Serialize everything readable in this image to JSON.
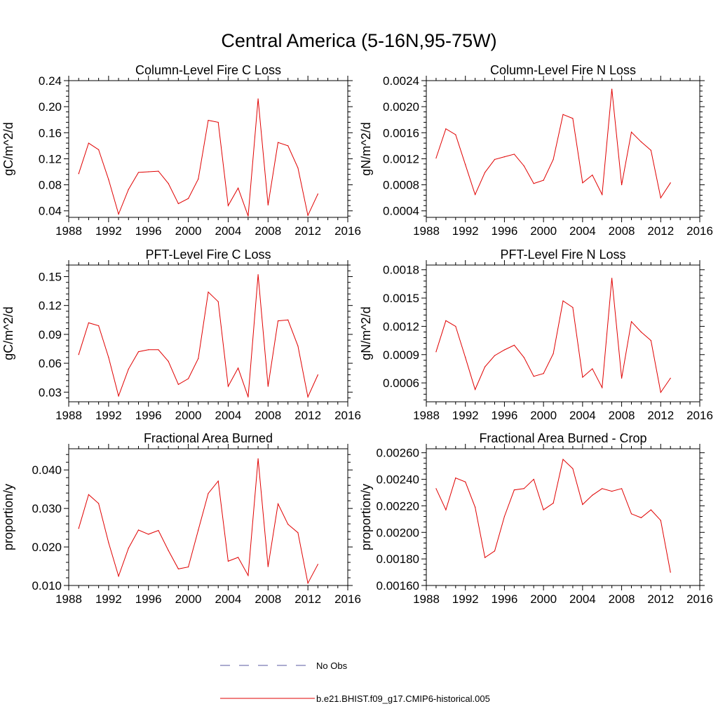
{
  "figure": {
    "title": "Central America (5-16N,95-75W)",
    "legend": [
      {
        "label": "No Obs",
        "color": "#5a5aa0",
        "style": "dashed"
      },
      {
        "label": "b.e21.BHIST.f09_g17.CMIP6-historical.005",
        "color": "#e00000",
        "style": "solid"
      }
    ]
  },
  "chart_data": [
    {
      "type": "line",
      "title": "Column-Level Fire C Loss",
      "xlabel": "",
      "ylabel": "gC/m^2/d",
      "xlim": [
        1988,
        2016
      ],
      "ylim": [
        0.03,
        0.24
      ],
      "xticks": [
        1988,
        1992,
        1996,
        2000,
        2004,
        2008,
        2012,
        2016
      ],
      "xtick_labels": [
        "1988",
        "1992",
        "1996",
        "2000",
        "2004",
        "2008",
        "2012",
        "2016"
      ],
      "yticks": [
        0.04,
        0.08,
        0.12,
        0.16,
        0.2,
        0.24
      ],
      "ytick_labels": [
        "0.04",
        "0.08",
        "0.12",
        "0.16",
        "0.20",
        "0.24"
      ],
      "x": [
        1989,
        1990,
        1991,
        1992,
        1993,
        1994,
        1995,
        1996,
        1997,
        1998,
        1999,
        2000,
        2001,
        2002,
        2003,
        2004,
        2005,
        2006,
        2007,
        2008,
        2009,
        2010,
        2011,
        2012,
        2013
      ],
      "series": [
        {
          "name": "b.e21.BHIST.f09_g17.CMIP6-historical.005",
          "color": "#e00000",
          "values": [
            0.097,
            0.144,
            0.134,
            0.088,
            0.035,
            0.073,
            0.099,
            0.1,
            0.101,
            0.082,
            0.051,
            0.059,
            0.089,
            0.179,
            0.176,
            0.048,
            0.075,
            0.032,
            0.212,
            0.049,
            0.145,
            0.14,
            0.106,
            0.033,
            0.066
          ]
        }
      ]
    },
    {
      "type": "line",
      "title": "Column-Level Fire N Loss",
      "xlabel": "",
      "ylabel": "gN/m^2/d",
      "xlim": [
        1988,
        2016
      ],
      "ylim": [
        0.0003,
        0.0024
      ],
      "xticks": [
        1988,
        1992,
        1996,
        2000,
        2004,
        2008,
        2012,
        2016
      ],
      "xtick_labels": [
        "1988",
        "1992",
        "1996",
        "2000",
        "2004",
        "2008",
        "2012",
        "2016"
      ],
      "yticks": [
        0.0004,
        0.0008,
        0.0012,
        0.0016,
        0.002,
        0.0024
      ],
      "ytick_labels": [
        "0.0004",
        "0.0008",
        "0.0012",
        "0.0016",
        "0.0020",
        "0.0024"
      ],
      "x": [
        1989,
        1990,
        1991,
        1992,
        1993,
        1994,
        1995,
        1996,
        1997,
        1998,
        1999,
        2000,
        2001,
        2002,
        2003,
        2004,
        2005,
        2006,
        2007,
        2008,
        2009,
        2010,
        2011,
        2012,
        2013
      ],
      "series": [
        {
          "name": "b.e21.BHIST.f09_g17.CMIP6-historical.005",
          "color": "#e00000",
          "values": [
            0.00121,
            0.00166,
            0.00157,
            0.00111,
            0.00065,
            0.00099,
            0.00119,
            0.00123,
            0.00127,
            0.00109,
            0.00082,
            0.00087,
            0.00119,
            0.00188,
            0.00182,
            0.00083,
            0.00095,
            0.00065,
            0.00227,
            0.0008,
            0.00161,
            0.00146,
            0.00133,
            0.0006,
            0.00083
          ]
        }
      ]
    },
    {
      "type": "line",
      "title": "PFT-Level Fire C Loss",
      "xlabel": "",
      "ylabel": "gC/m^2/d",
      "xlim": [
        1988,
        2016
      ],
      "ylim": [
        0.02,
        0.162
      ],
      "xticks": [
        1988,
        1992,
        1996,
        2000,
        2004,
        2008,
        2012,
        2016
      ],
      "xtick_labels": [
        "1988",
        "1992",
        "1996",
        "2000",
        "2004",
        "2008",
        "2012",
        "2016"
      ],
      "yticks": [
        0.03,
        0.06,
        0.09,
        0.12,
        0.15
      ],
      "ytick_labels": [
        "0.03",
        "0.06",
        "0.09",
        "0.12",
        "0.15"
      ],
      "x": [
        1989,
        1990,
        1991,
        1992,
        1993,
        1994,
        1995,
        1996,
        1997,
        1998,
        1999,
        2000,
        2001,
        2002,
        2003,
        2004,
        2005,
        2006,
        2007,
        2008,
        2009,
        2010,
        2011,
        2012,
        2013
      ],
      "series": [
        {
          "name": "b.e21.BHIST.f09_g17.CMIP6-historical.005",
          "color": "#e00000",
          "values": [
            0.069,
            0.102,
            0.099,
            0.066,
            0.026,
            0.054,
            0.072,
            0.074,
            0.074,
            0.062,
            0.038,
            0.044,
            0.065,
            0.134,
            0.124,
            0.036,
            0.055,
            0.025,
            0.152,
            0.036,
            0.104,
            0.105,
            0.078,
            0.025,
            0.048
          ]
        }
      ]
    },
    {
      "type": "line",
      "title": "PFT-Level Fire N Loss",
      "xlabel": "",
      "ylabel": "gN/m^2/d",
      "xlim": [
        1988,
        2016
      ],
      "ylim": [
        0.0004,
        0.00185
      ],
      "xticks": [
        1988,
        1992,
        1996,
        2000,
        2004,
        2008,
        2012,
        2016
      ],
      "xtick_labels": [
        "1988",
        "1992",
        "1996",
        "2000",
        "2004",
        "2008",
        "2012",
        "2016"
      ],
      "yticks": [
        0.0006,
        0.0009,
        0.0012,
        0.0015,
        0.0018
      ],
      "ytick_labels": [
        "0.0006",
        "0.0009",
        "0.0012",
        "0.0015",
        "0.0018"
      ],
      "x": [
        1989,
        1990,
        1991,
        1992,
        1993,
        1994,
        1995,
        1996,
        1997,
        1998,
        1999,
        2000,
        2001,
        2002,
        2003,
        2004,
        2005,
        2006,
        2007,
        2008,
        2009,
        2010,
        2011,
        2012,
        2013
      ],
      "series": [
        {
          "name": "b.e21.BHIST.f09_g17.CMIP6-historical.005",
          "color": "#e00000",
          "values": [
            0.00093,
            0.00126,
            0.0012,
            0.00087,
            0.00053,
            0.00077,
            0.00089,
            0.00095,
            0.001,
            0.00087,
            0.00067,
            0.0007,
            0.00091,
            0.00147,
            0.0014,
            0.00066,
            0.00075,
            0.00055,
            0.00171,
            0.00065,
            0.00125,
            0.00114,
            0.00105,
            0.0005,
            0.00065
          ]
        }
      ]
    },
    {
      "type": "line",
      "title": "Fractional Area Burned",
      "xlabel": "",
      "ylabel": "proportion/y",
      "xlim": [
        1988,
        2016
      ],
      "ylim": [
        0.01,
        0.0455
      ],
      "xticks": [
        1988,
        1992,
        1996,
        2000,
        2004,
        2008,
        2012,
        2016
      ],
      "xtick_labels": [
        "1988",
        "1992",
        "1996",
        "2000",
        "2004",
        "2008",
        "2012",
        "2016"
      ],
      "yticks": [
        0.01,
        0.02,
        0.03,
        0.04
      ],
      "ytick_labels": [
        "0.010",
        "0.020",
        "0.030",
        "0.040"
      ],
      "x": [
        1989,
        1990,
        1991,
        1992,
        1993,
        1994,
        1995,
        1996,
        1997,
        1998,
        1999,
        2000,
        2001,
        2002,
        2003,
        2004,
        2005,
        2006,
        2007,
        2008,
        2009,
        2010,
        2011,
        2012,
        2013
      ],
      "series": [
        {
          "name": "b.e21.BHIST.f09_g17.CMIP6-historical.005",
          "color": "#e00000",
          "values": [
            0.0248,
            0.0336,
            0.0313,
            0.0211,
            0.0124,
            0.0197,
            0.0244,
            0.0233,
            0.0243,
            0.0191,
            0.0143,
            0.0148,
            0.0244,
            0.0339,
            0.0371,
            0.0163,
            0.0173,
            0.0126,
            0.0429,
            0.0149,
            0.0312,
            0.0259,
            0.0237,
            0.0106,
            0.0155
          ]
        }
      ]
    },
    {
      "type": "line",
      "title": "Fractional Area Burned - Crop",
      "xlabel": "",
      "ylabel": "proportion/y",
      "xlim": [
        1988,
        2016
      ],
      "ylim": [
        0.0016,
        0.00263
      ],
      "xticks": [
        1988,
        1992,
        1996,
        2000,
        2004,
        2008,
        2012,
        2016
      ],
      "xtick_labels": [
        "1988",
        "1992",
        "1996",
        "2000",
        "2004",
        "2008",
        "2012",
        "2016"
      ],
      "yticks": [
        0.0016,
        0.0018,
        0.002,
        0.0022,
        0.0024,
        0.0026
      ],
      "ytick_labels": [
        "0.00160",
        "0.00180",
        "0.00200",
        "0.00220",
        "0.00240",
        "0.00260"
      ],
      "x": [
        1989,
        1990,
        1991,
        1992,
        1993,
        1994,
        1995,
        1996,
        1997,
        1998,
        1999,
        2000,
        2001,
        2002,
        2003,
        2004,
        2005,
        2006,
        2007,
        2008,
        2009,
        2010,
        2011,
        2012,
        2013
      ],
      "series": [
        {
          "name": "b.e21.BHIST.f09_g17.CMIP6-historical.005",
          "color": "#e00000",
          "values": [
            0.00233,
            0.00217,
            0.00241,
            0.00238,
            0.00219,
            0.00181,
            0.00186,
            0.00212,
            0.00232,
            0.00233,
            0.0024,
            0.00217,
            0.00222,
            0.00255,
            0.00248,
            0.00221,
            0.00228,
            0.00233,
            0.00231,
            0.00233,
            0.00214,
            0.00211,
            0.00217,
            0.00209,
            0.0017
          ]
        }
      ]
    }
  ]
}
